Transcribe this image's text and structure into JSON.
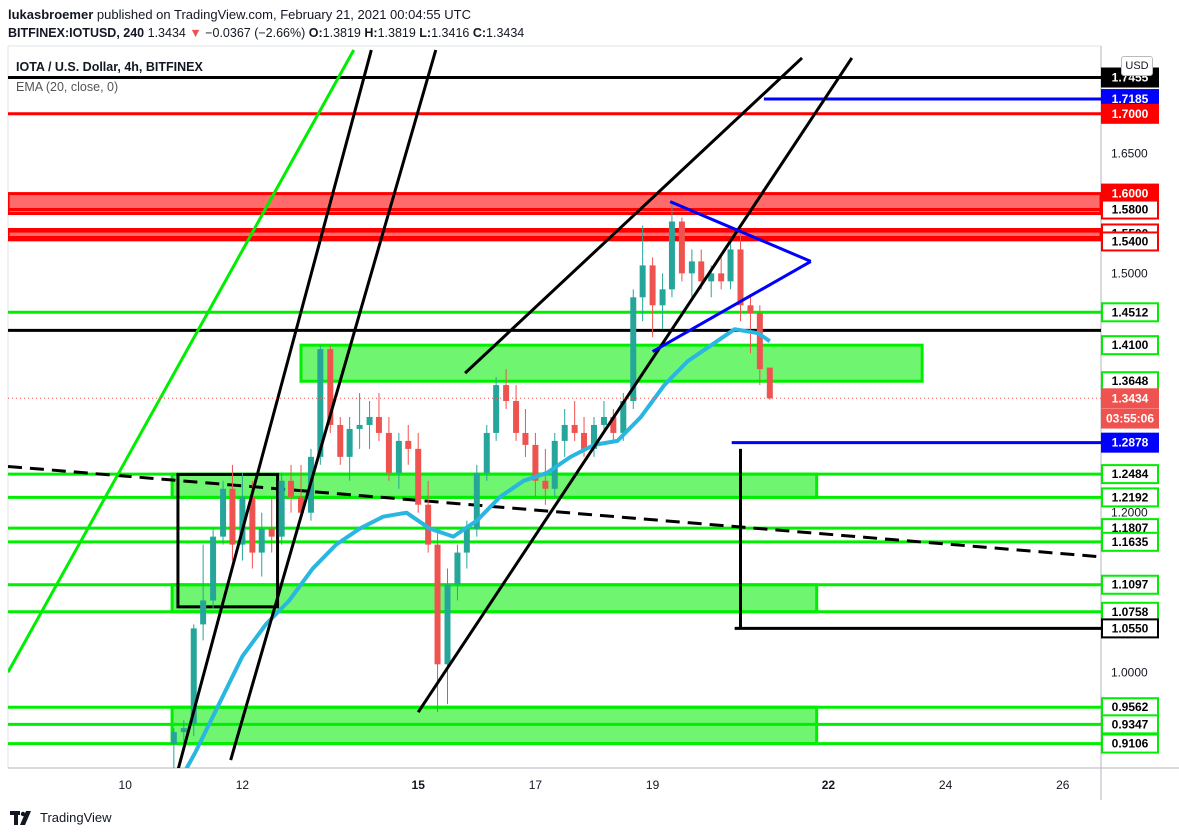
{
  "header": {
    "author": "lukasbroemer",
    "published_text": "published on TradingView.com, February 21, 2021 00:04:55 UTC",
    "symbol": "BITFINEX:IOTUSD, 240",
    "last": "1.3434",
    "change": "−0.0367 (−2.66%)",
    "open_label": "O:",
    "open": "1.3819",
    "high_label": "H:",
    "high": "1.3819",
    "low_label": "L:",
    "low": "1.3416",
    "close_label": "C:",
    "close": "1.3434"
  },
  "legend": {
    "title": "IOTA / U.S. Dollar, 4h, BITFINEX",
    "indicator": "EMA (20, close, 0)"
  },
  "currency_button": "USD",
  "footer": {
    "brand": "TradingView"
  },
  "colors": {
    "red": "#ff0000",
    "green": "#00ee00",
    "blue": "#0000ff",
    "black": "#000000",
    "ema": "#29b6e0",
    "candle_up": "#26a69a",
    "candle_down": "#ef5350",
    "zone_green": "#70f570",
    "zone_red": "#ff6b6b"
  },
  "chart_data": {
    "type": "candlestick",
    "ylim": [
      0.88,
      1.785
    ],
    "x_ticks": [
      {
        "day": 10,
        "label": "10"
      },
      {
        "day": 12,
        "label": "12"
      },
      {
        "day": 15,
        "label": "15",
        "bold": true
      },
      {
        "day": 17,
        "label": "17"
      },
      {
        "day": 19,
        "label": "19"
      },
      {
        "day": 22,
        "label": "22",
        "bold": true
      },
      {
        "day": 24,
        "label": "24"
      },
      {
        "day": 26,
        "label": "26"
      }
    ],
    "y_ticks": [
      "1.6500",
      "1.5000",
      "1.2000",
      "1.0000"
    ],
    "price_labels": [
      {
        "value": 1.7455,
        "text": "1.7455",
        "style": "black"
      },
      {
        "value": 1.7185,
        "text": "1.7185",
        "style": "blue"
      },
      {
        "value": 1.7,
        "text": "1.7000",
        "style": "red"
      },
      {
        "value": 1.6,
        "text": "1.6000",
        "style": "red"
      },
      {
        "value": 1.58,
        "text": "1.5800",
        "style": "red-outline"
      },
      {
        "value": 1.55,
        "text": "1.5500",
        "style": "red-outline"
      },
      {
        "value": 1.54,
        "text": "1.5400",
        "style": "red-outline"
      },
      {
        "value": 1.4512,
        "text": "1.4512",
        "style": "green-outline"
      },
      {
        "value": 1.41,
        "text": "1.4100",
        "style": "green-outline"
      },
      {
        "value": 1.3648,
        "text": "1.3648",
        "style": "green-outline"
      },
      {
        "value": 1.3434,
        "text": "1.3434",
        "style": "last"
      },
      {
        "value": 1.318,
        "text": "03:55:06",
        "style": "last"
      },
      {
        "value": 1.2878,
        "text": "1.2878",
        "style": "blue"
      },
      {
        "value": 1.2484,
        "text": "1.2484",
        "style": "green-outline"
      },
      {
        "value": 1.2192,
        "text": "1.2192",
        "style": "green-outline"
      },
      {
        "value": 1.1807,
        "text": "1.1807",
        "style": "green-outline"
      },
      {
        "value": 1.1635,
        "text": "1.1635",
        "style": "green-outline"
      },
      {
        "value": 1.1097,
        "text": "1.1097",
        "style": "green-outline"
      },
      {
        "value": 1.0758,
        "text": "1.0758",
        "style": "green-outline"
      },
      {
        "value": 1.055,
        "text": "1.0550",
        "style": "black-outline"
      },
      {
        "value": 0.9562,
        "text": "0.9562",
        "style": "green-outline"
      },
      {
        "value": 0.9347,
        "text": "0.9347",
        "style": "green-outline"
      },
      {
        "value": 0.9106,
        "text": "0.9106",
        "style": "green-outline"
      }
    ],
    "horizontal_lines": [
      {
        "value": 1.7455,
        "color": "black",
        "x1_day": 8.0
      },
      {
        "value": 1.7185,
        "color": "blue",
        "x1_day": 20.9
      },
      {
        "value": 1.7,
        "color": "red",
        "x1_day": 8.0
      },
      {
        "value": 1.58,
        "color": "red",
        "x1_day": 8.0
      },
      {
        "value": 1.555,
        "color": "red",
        "x1_day": 8.0
      },
      {
        "value": 1.545,
        "color": "red",
        "x1_day": 8.0
      },
      {
        "value": 1.4512,
        "color": "green",
        "x1_day": 8.0
      },
      {
        "value": 1.4285,
        "color": "black",
        "x1_day": 8.0
      },
      {
        "value": 1.2878,
        "color": "blue",
        "x1_day": 20.35
      },
      {
        "value": 1.2484,
        "color": "green",
        "x1_day": 8.0
      },
      {
        "value": 1.2192,
        "color": "green",
        "x1_day": 8.0
      },
      {
        "value": 1.1807,
        "color": "green",
        "x1_day": 8.0
      },
      {
        "value": 1.1635,
        "color": "green",
        "x1_day": 8.0
      },
      {
        "value": 1.1097,
        "color": "green",
        "x1_day": 8.0
      },
      {
        "value": 1.0758,
        "color": "green",
        "x1_day": 8.0
      },
      {
        "value": 0.9562,
        "color": "green",
        "x1_day": 8.0
      },
      {
        "value": 0.9347,
        "color": "green",
        "x1_day": 8.0
      },
      {
        "value": 0.9106,
        "color": "green",
        "x1_day": 8.0
      }
    ],
    "zones": [
      {
        "color": "red",
        "day_start": 8.0,
        "day_end": null,
        "top": 1.6,
        "bottom": 1.575
      },
      {
        "color": "red",
        "day_start": 8.0,
        "day_end": null,
        "top": 1.553,
        "bottom": 1.542
      },
      {
        "color": "green",
        "day_start": 13.0,
        "day_end": 23.6,
        "top": 1.41,
        "bottom": 1.3648
      },
      {
        "color": "green",
        "day_start": 10.8,
        "day_end": 21.8,
        "top": 1.2484,
        "bottom": 1.2192
      },
      {
        "color": "green",
        "day_start": 10.8,
        "day_end": 21.8,
        "top": 1.1097,
        "bottom": 1.0758
      },
      {
        "color": "green",
        "day_start": 10.8,
        "day_end": 21.8,
        "top": 0.9562,
        "bottom": 0.9106
      }
    ],
    "trendlines": [
      {
        "color": "green",
        "day1": 8.0,
        "p1": 1.0,
        "day2": 13.9,
        "p2": 1.78
      },
      {
        "color": "black",
        "day1": 10.8,
        "p1": 0.85,
        "day2": 14.2,
        "p2": 1.78
      },
      {
        "color": "black",
        "day1": 11.8,
        "p1": 0.89,
        "day2": 15.3,
        "p2": 1.78
      },
      {
        "color": "black",
        "day1": 15.0,
        "p1": 0.95,
        "day2": 22.4,
        "p2": 1.77
      },
      {
        "color": "black",
        "day1": 15.8,
        "p1": 1.375,
        "day2": 21.55,
        "p2": 1.77
      },
      {
        "color": "black",
        "day1": 20.5,
        "p1": 1.28,
        "day2": 20.5,
        "p2": 1.055
      },
      {
        "color": "black",
        "day1": 20.4,
        "p1": 1.055,
        "day2": 26.8,
        "p2": 1.055
      },
      {
        "color": "blue",
        "day1": 19.3,
        "p1": 1.59,
        "day2": 21.7,
        "p2": 1.515
      },
      {
        "color": "blue",
        "day1": 19.0,
        "p1": 1.402,
        "day2": 21.7,
        "p2": 1.515
      },
      {
        "color": "green",
        "day1": 8.0,
        "p1": 1.2585,
        "day2": 9.5,
        "p2": 1.2585,
        "hidden": true
      }
    ],
    "dashed_trendline": {
      "day1": 8.0,
      "p1": 1.258,
      "day2": 26.6,
      "p2": 1.145
    },
    "rectangle": {
      "day_start": 10.9,
      "day_end": 12.6,
      "top": 1.248,
      "bottom": 1.082
    },
    "candles": [
      {
        "day": 10.83,
        "o": 0.91,
        "h": 0.93,
        "l": 0.88,
        "c": 0.925
      },
      {
        "day": 11.0,
        "o": 0.925,
        "h": 0.94,
        "l": 0.9,
        "c": 0.93
      },
      {
        "day": 11.17,
        "o": 0.935,
        "h": 1.06,
        "l": 0.92,
        "c": 1.055
      },
      {
        "day": 11.33,
        "o": 1.06,
        "h": 1.16,
        "l": 1.04,
        "c": 1.09
      },
      {
        "day": 11.5,
        "o": 1.09,
        "h": 1.18,
        "l": 1.08,
        "c": 1.17
      },
      {
        "day": 11.67,
        "o": 1.17,
        "h": 1.24,
        "l": 1.16,
        "c": 1.23
      },
      {
        "day": 11.83,
        "o": 1.23,
        "h": 1.26,
        "l": 1.14,
        "c": 1.16
      },
      {
        "day": 12.0,
        "o": 1.16,
        "h": 1.25,
        "l": 1.14,
        "c": 1.22
      },
      {
        "day": 12.17,
        "o": 1.22,
        "h": 1.24,
        "l": 1.13,
        "c": 1.15
      },
      {
        "day": 12.33,
        "o": 1.15,
        "h": 1.2,
        "l": 1.12,
        "c": 1.18
      },
      {
        "day": 12.5,
        "o": 1.18,
        "h": 1.22,
        "l": 1.15,
        "c": 1.17
      },
      {
        "day": 12.67,
        "o": 1.17,
        "h": 1.25,
        "l": 1.16,
        "c": 1.24
      },
      {
        "day": 12.83,
        "o": 1.24,
        "h": 1.26,
        "l": 1.2,
        "c": 1.22
      },
      {
        "day": 13.0,
        "o": 1.22,
        "h": 1.26,
        "l": 1.19,
        "c": 1.2
      },
      {
        "day": 13.17,
        "o": 1.2,
        "h": 1.28,
        "l": 1.19,
        "c": 1.27
      },
      {
        "day": 13.33,
        "o": 1.27,
        "h": 1.41,
        "l": 1.26,
        "c": 1.405
      },
      {
        "day": 13.5,
        "o": 1.405,
        "h": 1.41,
        "l": 1.3,
        "c": 1.31
      },
      {
        "day": 13.67,
        "o": 1.31,
        "h": 1.32,
        "l": 1.26,
        "c": 1.27
      },
      {
        "day": 13.83,
        "o": 1.27,
        "h": 1.32,
        "l": 1.24,
        "c": 1.305
      },
      {
        "day": 14.0,
        "o": 1.305,
        "h": 1.35,
        "l": 1.28,
        "c": 1.31
      },
      {
        "day": 14.17,
        "o": 1.31,
        "h": 1.34,
        "l": 1.28,
        "c": 1.32
      },
      {
        "day": 14.33,
        "o": 1.32,
        "h": 1.35,
        "l": 1.29,
        "c": 1.3
      },
      {
        "day": 14.5,
        "o": 1.3,
        "h": 1.32,
        "l": 1.24,
        "c": 1.25
      },
      {
        "day": 14.67,
        "o": 1.25,
        "h": 1.3,
        "l": 1.23,
        "c": 1.29
      },
      {
        "day": 14.83,
        "o": 1.29,
        "h": 1.31,
        "l": 1.26,
        "c": 1.28
      },
      {
        "day": 15.0,
        "o": 1.28,
        "h": 1.3,
        "l": 1.2,
        "c": 1.21
      },
      {
        "day": 15.17,
        "o": 1.21,
        "h": 1.24,
        "l": 1.15,
        "c": 1.16
      },
      {
        "day": 15.33,
        "o": 1.16,
        "h": 1.18,
        "l": 0.95,
        "c": 1.01
      },
      {
        "day": 15.5,
        "o": 1.01,
        "h": 1.13,
        "l": 0.96,
        "c": 1.11
      },
      {
        "day": 15.67,
        "o": 1.11,
        "h": 1.16,
        "l": 1.09,
        "c": 1.15
      },
      {
        "day": 15.83,
        "o": 1.15,
        "h": 1.19,
        "l": 1.13,
        "c": 1.18
      },
      {
        "day": 16.0,
        "o": 1.18,
        "h": 1.26,
        "l": 1.17,
        "c": 1.25
      },
      {
        "day": 16.17,
        "o": 1.25,
        "h": 1.31,
        "l": 1.24,
        "c": 1.3
      },
      {
        "day": 16.33,
        "o": 1.3,
        "h": 1.37,
        "l": 1.29,
        "c": 1.36
      },
      {
        "day": 16.5,
        "o": 1.36,
        "h": 1.38,
        "l": 1.33,
        "c": 1.34
      },
      {
        "day": 16.67,
        "o": 1.34,
        "h": 1.36,
        "l": 1.29,
        "c": 1.3
      },
      {
        "day": 16.83,
        "o": 1.3,
        "h": 1.33,
        "l": 1.27,
        "c": 1.285
      },
      {
        "day": 17.0,
        "o": 1.285,
        "h": 1.3,
        "l": 1.22,
        "c": 1.24
      },
      {
        "day": 17.17,
        "o": 1.24,
        "h": 1.28,
        "l": 1.21,
        "c": 1.23
      },
      {
        "day": 17.33,
        "o": 1.23,
        "h": 1.3,
        "l": 1.22,
        "c": 1.29
      },
      {
        "day": 17.5,
        "o": 1.29,
        "h": 1.33,
        "l": 1.27,
        "c": 1.31
      },
      {
        "day": 17.67,
        "o": 1.31,
        "h": 1.34,
        "l": 1.29,
        "c": 1.3
      },
      {
        "day": 17.83,
        "o": 1.3,
        "h": 1.32,
        "l": 1.27,
        "c": 1.28
      },
      {
        "day": 18.0,
        "o": 1.28,
        "h": 1.32,
        "l": 1.27,
        "c": 1.31
      },
      {
        "day": 18.17,
        "o": 1.31,
        "h": 1.34,
        "l": 1.3,
        "c": 1.32
      },
      {
        "day": 18.33,
        "o": 1.32,
        "h": 1.33,
        "l": 1.29,
        "c": 1.3
      },
      {
        "day": 18.5,
        "o": 1.3,
        "h": 1.35,
        "l": 1.29,
        "c": 1.34
      },
      {
        "day": 18.67,
        "o": 1.34,
        "h": 1.48,
        "l": 1.33,
        "c": 1.47
      },
      {
        "day": 18.83,
        "o": 1.47,
        "h": 1.56,
        "l": 1.44,
        "c": 1.51
      },
      {
        "day": 19.0,
        "o": 1.51,
        "h": 1.52,
        "l": 1.42,
        "c": 1.46
      },
      {
        "day": 19.17,
        "o": 1.46,
        "h": 1.5,
        "l": 1.43,
        "c": 1.48
      },
      {
        "day": 19.33,
        "o": 1.48,
        "h": 1.59,
        "l": 1.47,
        "c": 1.565
      },
      {
        "day": 19.5,
        "o": 1.565,
        "h": 1.57,
        "l": 1.49,
        "c": 1.5
      },
      {
        "day": 19.67,
        "o": 1.5,
        "h": 1.53,
        "l": 1.47,
        "c": 1.515
      },
      {
        "day": 19.83,
        "o": 1.515,
        "h": 1.53,
        "l": 1.48,
        "c": 1.49
      },
      {
        "day": 20.0,
        "o": 1.49,
        "h": 1.51,
        "l": 1.47,
        "c": 1.5
      },
      {
        "day": 20.17,
        "o": 1.5,
        "h": 1.52,
        "l": 1.48,
        "c": 1.49
      },
      {
        "day": 20.33,
        "o": 1.49,
        "h": 1.54,
        "l": 1.48,
        "c": 1.53
      },
      {
        "day": 20.5,
        "o": 1.53,
        "h": 1.55,
        "l": 1.44,
        "c": 1.46
      },
      {
        "day": 20.67,
        "o": 1.46,
        "h": 1.47,
        "l": 1.4,
        "c": 1.45
      },
      {
        "day": 20.83,
        "o": 1.45,
        "h": 1.46,
        "l": 1.36,
        "c": 1.38
      },
      {
        "day": 21.0,
        "o": 1.3819,
        "h": 1.3819,
        "l": 1.3416,
        "c": 1.3434
      }
    ],
    "ema": [
      [
        10.9,
        0.86
      ],
      [
        11.2,
        0.9
      ],
      [
        11.6,
        0.96
      ],
      [
        12.0,
        1.02
      ],
      [
        12.4,
        1.06
      ],
      [
        12.8,
        1.09
      ],
      [
        13.2,
        1.13
      ],
      [
        13.6,
        1.16
      ],
      [
        14.0,
        1.18
      ],
      [
        14.4,
        1.195
      ],
      [
        14.8,
        1.2
      ],
      [
        15.2,
        1.18
      ],
      [
        15.6,
        1.17
      ],
      [
        16.0,
        1.19
      ],
      [
        16.4,
        1.22
      ],
      [
        16.8,
        1.24
      ],
      [
        17.2,
        1.25
      ],
      [
        17.6,
        1.27
      ],
      [
        18.0,
        1.285
      ],
      [
        18.4,
        1.29
      ],
      [
        18.8,
        1.32
      ],
      [
        19.2,
        1.36
      ],
      [
        19.6,
        1.39
      ],
      [
        20.0,
        1.41
      ],
      [
        20.4,
        1.43
      ],
      [
        20.8,
        1.425
      ],
      [
        21.0,
        1.415
      ]
    ]
  }
}
